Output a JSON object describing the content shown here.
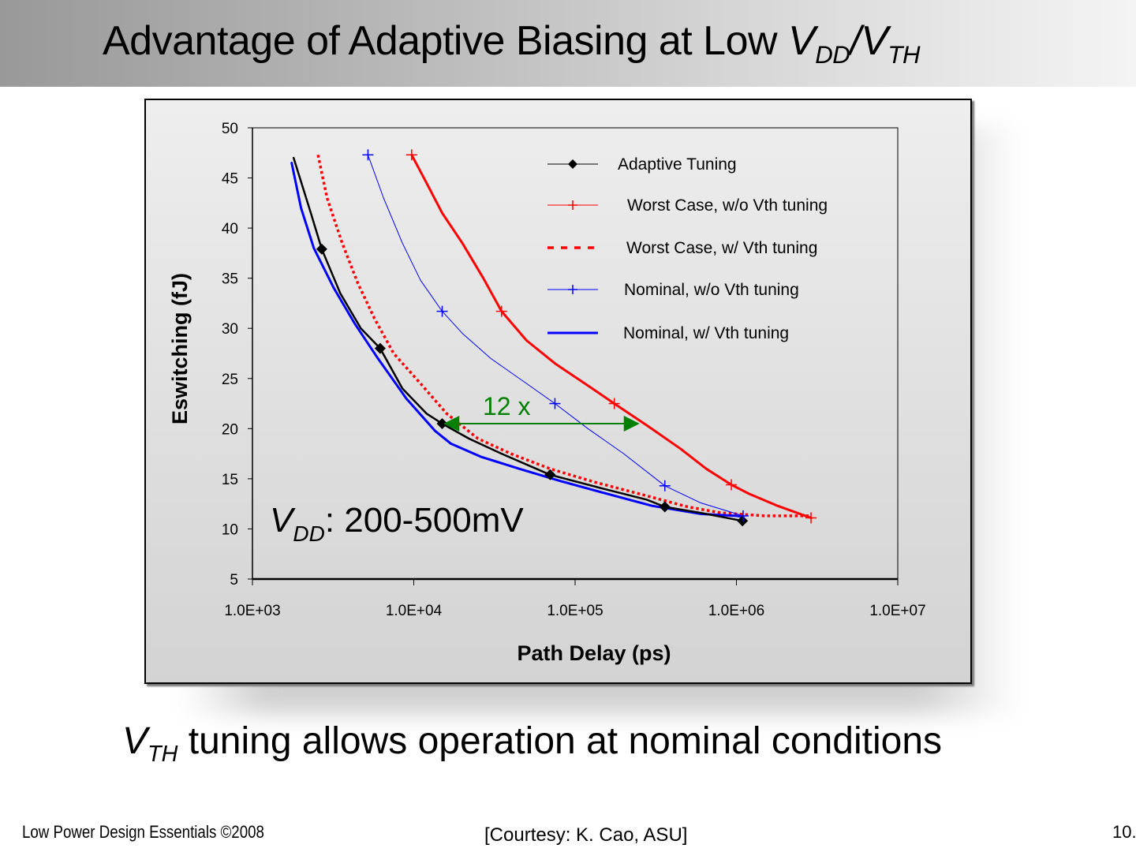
{
  "slide": {
    "title": {
      "text": "Advantage of Adaptive Biasing at Low ",
      "v1": "V",
      "sub1": "DD",
      "slash": "/",
      "v2": "V",
      "sub2": "TH"
    },
    "caption": {
      "v": "V",
      "sub": "TH",
      "text": " tuning allows operation at nominal conditions"
    },
    "footer_left": "Low Power Design Essentials ©2008",
    "footer_center": "[Courtesy: K. Cao, ASU]",
    "footer_right": "10."
  },
  "chart_data": {
    "type": "line",
    "title": "",
    "xlabel": "Path Delay (ps)",
    "ylabel": "Eswitching (fJ)",
    "xscale": "log",
    "xlim": [
      1000,
      10000000
    ],
    "ylim": [
      5,
      50
    ],
    "x_ticks": [
      1000,
      10000,
      100000,
      1000000,
      10000000
    ],
    "x_tick_labels": [
      "1.0E+03",
      "1.0E+04",
      "1.0E+05",
      "1.0E+06",
      "1.0E+07"
    ],
    "y_ticks": [
      5,
      10,
      15,
      20,
      25,
      30,
      35,
      40,
      45,
      50
    ],
    "y_tick_labels": [
      "5",
      "10",
      "15",
      "20",
      "25",
      "30",
      "35",
      "40",
      "45",
      "50"
    ],
    "grid": false,
    "legend_position": "top-right",
    "series": [
      {
        "name": "Adaptive Tuning",
        "color": "#000000",
        "style": "solid",
        "marker": "diamond",
        "points": [
          [
            1800,
            47.0
          ],
          [
            2300,
            41.5
          ],
          [
            2690,
            37.9
          ],
          [
            3500,
            33.5
          ],
          [
            4700,
            30.0
          ],
          [
            6190,
            28.0
          ],
          [
            8500,
            24.0
          ],
          [
            12000,
            21.5
          ],
          [
            15000,
            20.5
          ],
          [
            22000,
            19.0
          ],
          [
            35000,
            17.5
          ],
          [
            70000,
            15.4
          ],
          [
            150000,
            14.0
          ],
          [
            280000,
            12.9
          ],
          [
            360000,
            12.2
          ],
          [
            600000,
            11.6
          ],
          [
            1090000,
            10.8
          ]
        ],
        "markers": [
          [
            2690,
            37.9
          ],
          [
            6190,
            28.0
          ],
          [
            15000,
            20.5
          ],
          [
            70000,
            15.4
          ],
          [
            360000,
            12.2
          ],
          [
            1090000,
            10.8
          ]
        ]
      },
      {
        "name": "Worst Case, w/o Vth tuning",
        "color": "#ff0000",
        "style": "solid",
        "marker": "plus",
        "points": [
          [
            9700,
            47.3
          ],
          [
            12000,
            44.5
          ],
          [
            15000,
            41.5
          ],
          [
            20000,
            38.5
          ],
          [
            27000,
            35.0
          ],
          [
            35000,
            31.7
          ],
          [
            50000,
            28.8
          ],
          [
            75000,
            26.5
          ],
          [
            120000,
            24.3
          ],
          [
            175000,
            22.5
          ],
          [
            280000,
            20.3
          ],
          [
            450000,
            18.0
          ],
          [
            650000,
            16.0
          ],
          [
            930000,
            14.4
          ],
          [
            1200000,
            13.5
          ],
          [
            1800000,
            12.3
          ],
          [
            2900000,
            11.1
          ]
        ],
        "markers": [
          [
            9700,
            47.3
          ],
          [
            35000,
            31.7
          ],
          [
            175000,
            22.5
          ],
          [
            930000,
            14.4
          ],
          [
            2900000,
            11.1
          ]
        ]
      },
      {
        "name": "Worst Case, w/ Vth tuning",
        "color": "#ff0000",
        "style": "dotted",
        "marker": "none",
        "points": [
          [
            2550,
            47.3
          ],
          [
            2900,
            43.0
          ],
          [
            3600,
            38.5
          ],
          [
            4500,
            34.5
          ],
          [
            5700,
            31.0
          ],
          [
            7500,
            27.5
          ],
          [
            11000,
            24.5
          ],
          [
            16000,
            21.5
          ],
          [
            25000,
            19.0
          ],
          [
            40000,
            17.5
          ],
          [
            70000,
            16.0
          ],
          [
            130000,
            14.7
          ],
          [
            250000,
            13.5
          ],
          [
            500000,
            12.2
          ],
          [
            800000,
            11.6
          ],
          [
            1500000,
            11.3
          ],
          [
            2900000,
            11.3
          ]
        ],
        "markers": []
      },
      {
        "name": "Nominal, w/o Vth tuning",
        "color": "#0000ff",
        "style": "thin",
        "marker": "plus",
        "points": [
          [
            5200,
            47.3
          ],
          [
            6500,
            43.0
          ],
          [
            8500,
            38.5
          ],
          [
            11000,
            34.8
          ],
          [
            15000,
            31.7
          ],
          [
            20000,
            29.5
          ],
          [
            30000,
            27.0
          ],
          [
            50000,
            24.5
          ],
          [
            75000,
            22.5
          ],
          [
            120000,
            20.0
          ],
          [
            200000,
            17.5
          ],
          [
            360000,
            14.3
          ],
          [
            600000,
            12.6
          ],
          [
            1100000,
            11.3
          ]
        ],
        "markers": [
          [
            5200,
            47.3
          ],
          [
            15000,
            31.7
          ],
          [
            75000,
            22.5
          ],
          [
            360000,
            14.3
          ],
          [
            1100000,
            11.3
          ]
        ]
      },
      {
        "name": "Nominal, w/ Vth tuning",
        "color": "#0000ff",
        "style": "bold",
        "marker": "none",
        "points": [
          [
            1750,
            46.5
          ],
          [
            2000,
            42.0
          ],
          [
            2400,
            38.0
          ],
          [
            3200,
            34.0
          ],
          [
            4300,
            30.5
          ],
          [
            6000,
            27.0
          ],
          [
            9000,
            23.0
          ],
          [
            13500,
            19.8
          ],
          [
            17000,
            18.5
          ],
          [
            26000,
            17.2
          ],
          [
            45000,
            16.0
          ],
          [
            80000,
            14.8
          ],
          [
            150000,
            13.6
          ],
          [
            300000,
            12.3
          ],
          [
            600000,
            11.5
          ],
          [
            1000000,
            11.3
          ],
          [
            1100000,
            11.2
          ]
        ],
        "markers": []
      }
    ],
    "annotations": [
      {
        "type": "double-arrow",
        "color": "#008000",
        "from": [
          16000,
          20.5
        ],
        "to": [
          240000,
          20.5
        ],
        "label": "12 x"
      },
      {
        "type": "text",
        "v": "V",
        "sub": "DD",
        "text": ": 200-500mV"
      }
    ]
  }
}
